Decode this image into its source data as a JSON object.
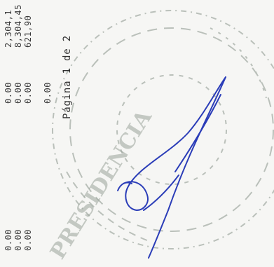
{
  "document": {
    "page_label": "Página 1 de 2",
    "column_left": [
      "0.00",
      "0.00",
      "0.00"
    ],
    "column_middle": [
      "0.00",
      "0.00",
      "0.00",
      "0.00"
    ],
    "column_right": [
      "2,304,1",
      "8,304,45",
      "621,90"
    ]
  },
  "seal": {
    "lettering": "PRESIDENCIA",
    "color": "#9aa39a"
  },
  "signature": {
    "ink_color": "#2b3db8"
  }
}
